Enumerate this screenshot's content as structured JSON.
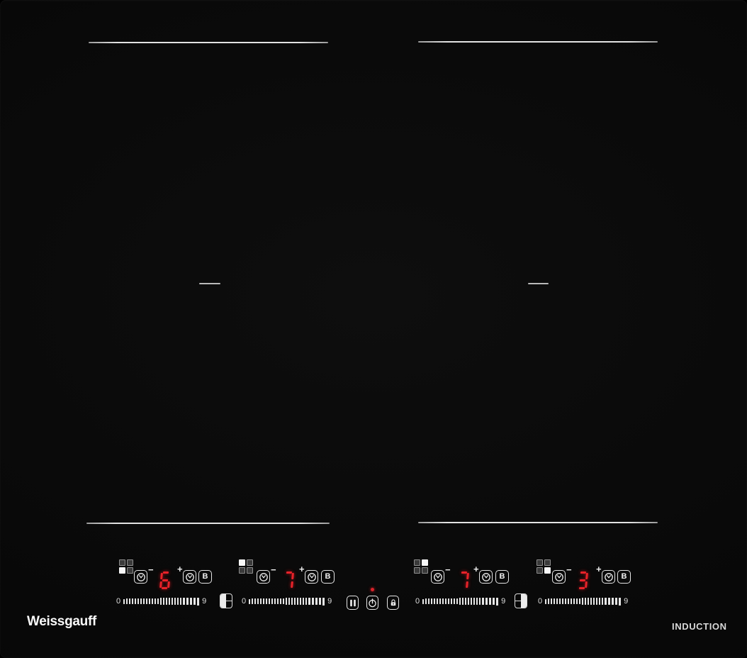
{
  "brand": {
    "logo_text": "Weissgauff",
    "type_label": "INDUCTION"
  },
  "colors": {
    "surface": "#0a0a0a",
    "markings": "#e2e2e2",
    "display_red": "#e8232a"
  },
  "icons": {
    "zone_position": "zone-position-grid-icon",
    "timer": "timer-dial-icon",
    "boost": "boost-B",
    "bridge": "bridge-zone-icon",
    "pause": "pause-icon",
    "power": "power-icon",
    "lock": "lock-icon"
  },
  "controls": {
    "zones": [
      {
        "name": "front-left",
        "active_cell": "bl",
        "level": "6",
        "minus": "−",
        "plus": "+",
        "boost": "B",
        "slider": {
          "min": "0",
          "max": "9",
          "ticks": 26
        }
      },
      {
        "name": "back-left",
        "active_cell": "tl",
        "level": "7",
        "minus": "−",
        "plus": "+",
        "boost": "B",
        "slider": {
          "min": "0",
          "max": "9",
          "ticks": 26
        }
      },
      {
        "name": "back-right",
        "active_cell": "tr",
        "level": "7",
        "minus": "−",
        "plus": "+",
        "boost": "B",
        "slider": {
          "min": "0",
          "max": "9",
          "ticks": 26
        }
      },
      {
        "name": "front-right",
        "active_cell": "br",
        "level": "3",
        "minus": "−",
        "plus": "+",
        "boost": "B",
        "slider": {
          "min": "0",
          "max": "9",
          "ticks": 26
        }
      }
    ],
    "bridges": [
      {
        "side": "left",
        "filled": "left"
      },
      {
        "side": "right",
        "filled": "right"
      }
    ],
    "center": {
      "indicator_on": true
    }
  }
}
